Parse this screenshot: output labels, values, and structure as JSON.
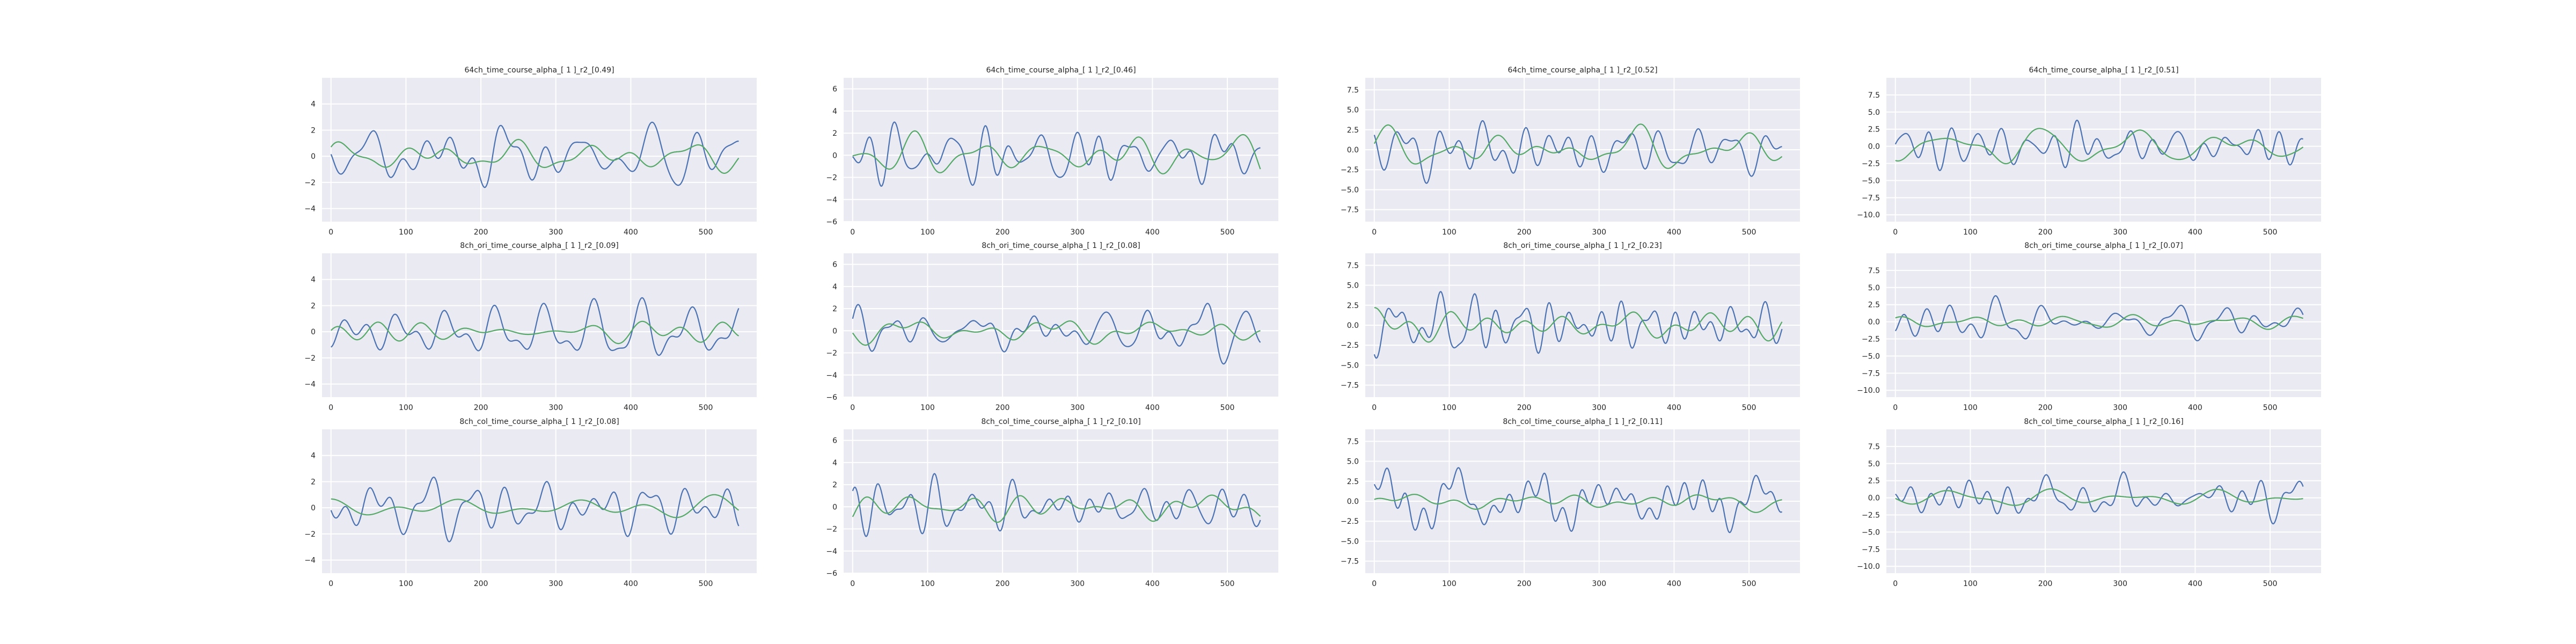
{
  "figure": {
    "rows": 3,
    "cols": 4,
    "series_colors": [
      "#4c72b0",
      "#55a868"
    ],
    "grid": true,
    "style": "light-gray background with white gridlines"
  },
  "chart_data": [
    {
      "type": "line",
      "title": "64ch_time_course_alpha_[ 1 ]_r2_[0.49]",
      "xlim": [
        -12,
        568
      ],
      "ylim": [
        -5,
        6
      ],
      "x_ticks": [
        0,
        100,
        200,
        300,
        400,
        500
      ],
      "y_ticks": [
        "4",
        "2",
        "0",
        "−2",
        "−4"
      ],
      "y_tick_values": [
        4,
        2,
        0,
        -2,
        -4
      ],
      "amp": [
        2.6,
        1.3
      ],
      "seed": 11
    },
    {
      "type": "line",
      "title": "64ch_time_course_alpha_[ 1 ]_r2_[0.46]",
      "xlim": [
        -12,
        568
      ],
      "ylim": [
        -6,
        7
      ],
      "x_ticks": [
        0,
        100,
        200,
        300,
        400,
        500
      ],
      "y_ticks": [
        "6",
        "4",
        "2",
        "0",
        "−2",
        "−4",
        "−6"
      ],
      "y_tick_values": [
        6,
        4,
        2,
        0,
        -2,
        -4,
        -6
      ],
      "amp": [
        3.0,
        2.2
      ],
      "seed": 23
    },
    {
      "type": "line",
      "title": "64ch_time_course_alpha_[ 1 ]_r2_[0.52]",
      "xlim": [
        -12,
        568
      ],
      "ylim": [
        -9,
        9
      ],
      "x_ticks": [
        0,
        100,
        200,
        300,
        400,
        500
      ],
      "y_ticks": [
        "7.5",
        "5.0",
        "2.5",
        "0.0",
        "−2.5",
        "−5.0",
        "−7.5"
      ],
      "y_tick_values": [
        7.5,
        5,
        2.5,
        0,
        -2.5,
        -5,
        -7.5
      ],
      "amp": [
        4.2,
        3.2
      ],
      "seed": 37
    },
    {
      "type": "line",
      "title": "64ch_time_course_alpha_[ 1 ]_r2_[0.51]",
      "xlim": [
        -12,
        568
      ],
      "ylim": [
        -11,
        10
      ],
      "x_ticks": [
        0,
        100,
        200,
        300,
        400,
        500
      ],
      "y_ticks": [
        "7.5",
        "5.0",
        "2.5",
        "0.0",
        "−2.5",
        "−5.0",
        "−7.5",
        "−10.0"
      ],
      "y_tick_values": [
        7.5,
        5,
        2.5,
        0,
        -2.5,
        -5,
        -7.5,
        -10
      ],
      "amp": [
        3.8,
        2.6
      ],
      "seed": 41
    },
    {
      "type": "line",
      "title": "8ch_ori_time_course_alpha_[ 1 ]_r2_[0.09]",
      "xlim": [
        -12,
        568
      ],
      "ylim": [
        -5,
        6
      ],
      "x_ticks": [
        0,
        100,
        200,
        300,
        400,
        500
      ],
      "y_ticks": [
        "4",
        "2",
        "0",
        "−2",
        "−4"
      ],
      "y_tick_values": [
        4,
        2,
        0,
        -2,
        -4
      ],
      "amp": [
        2.6,
        0.9
      ],
      "seed": 53
    },
    {
      "type": "line",
      "title": "8ch_ori_time_course_alpha_[ 1 ]_r2_[0.08]",
      "xlim": [
        -12,
        568
      ],
      "ylim": [
        -6,
        7
      ],
      "x_ticks": [
        0,
        100,
        200,
        300,
        400,
        500
      ],
      "y_ticks": [
        "6",
        "4",
        "2",
        "0",
        "−2",
        "−4",
        "−6"
      ],
      "y_tick_values": [
        6,
        4,
        2,
        0,
        -2,
        -4,
        -6
      ],
      "amp": [
        3.0,
        1.3
      ],
      "seed": 67
    },
    {
      "type": "line",
      "title": "8ch_ori_time_course_alpha_[ 1 ]_r2_[0.23]",
      "xlim": [
        -12,
        568
      ],
      "ylim": [
        -9,
        9
      ],
      "x_ticks": [
        0,
        100,
        200,
        300,
        400,
        500
      ],
      "y_ticks": [
        "7.5",
        "5.0",
        "2.5",
        "0.0",
        "−2.5",
        "−5.0",
        "−7.5"
      ],
      "y_tick_values": [
        7.5,
        5,
        2.5,
        0,
        -2.5,
        -5,
        -7.5
      ],
      "amp": [
        4.2,
        2.2
      ],
      "seed": 71
    },
    {
      "type": "line",
      "title": "8ch_ori_time_course_alpha_[ 1 ]_r2_[0.07]",
      "xlim": [
        -12,
        568
      ],
      "ylim": [
        -11,
        10
      ],
      "x_ticks": [
        0,
        100,
        200,
        300,
        400,
        500
      ],
      "y_ticks": [
        "7.5",
        "5.0",
        "2.5",
        "0.0",
        "−2.5",
        "−5.0",
        "−7.5",
        "−10.0"
      ],
      "y_tick_values": [
        7.5,
        5,
        2.5,
        0,
        -2.5,
        -5,
        -7.5,
        -10
      ],
      "amp": [
        3.8,
        1.1
      ],
      "seed": 83
    },
    {
      "type": "line",
      "title": "8ch_col_time_course_alpha_[ 1 ]_r2_[0.08]",
      "xlim": [
        -12,
        568
      ],
      "ylim": [
        -5,
        6
      ],
      "x_ticks": [
        0,
        100,
        200,
        300,
        400,
        500
      ],
      "y_ticks": [
        "4",
        "2",
        "0",
        "−2",
        "−4"
      ],
      "y_tick_values": [
        4,
        2,
        0,
        -2,
        -4
      ],
      "amp": [
        2.6,
        1.0
      ],
      "seed": 97
    },
    {
      "type": "line",
      "title": "8ch_col_time_course_alpha_[ 1 ]_r2_[0.10]",
      "xlim": [
        -12,
        568
      ],
      "ylim": [
        -6,
        7
      ],
      "x_ticks": [
        0,
        100,
        200,
        300,
        400,
        500
      ],
      "y_ticks": [
        "6",
        "4",
        "2",
        "0",
        "−2",
        "−4",
        "−6"
      ],
      "y_tick_values": [
        6,
        4,
        2,
        0,
        -2,
        -4,
        -6
      ],
      "amp": [
        3.0,
        1.4
      ],
      "seed": 101
    },
    {
      "type": "line",
      "title": "8ch_col_time_course_alpha_[ 1 ]_r2_[0.11]",
      "xlim": [
        -12,
        568
      ],
      "ylim": [
        -9,
        9
      ],
      "x_ticks": [
        0,
        100,
        200,
        300,
        400,
        500
      ],
      "y_ticks": [
        "7.5",
        "5.0",
        "2.5",
        "0.0",
        "−2.5",
        "−5.0",
        "−7.5"
      ],
      "y_tick_values": [
        7.5,
        5,
        2.5,
        0,
        -2.5,
        -5,
        -7.5
      ],
      "amp": [
        4.2,
        1.4
      ],
      "seed": 113
    },
    {
      "type": "line",
      "title": "8ch_col_time_course_alpha_[ 1 ]_r2_[0.16]",
      "xlim": [
        -12,
        568
      ],
      "ylim": [
        -11,
        10
      ],
      "x_ticks": [
        0,
        100,
        200,
        300,
        400,
        500
      ],
      "y_ticks": [
        "7.5",
        "5.0",
        "2.5",
        "0.0",
        "−2.5",
        "−5.0",
        "−7.5",
        "−10.0"
      ],
      "y_tick_values": [
        7.5,
        5,
        2.5,
        0,
        -2.5,
        -5,
        -7.5,
        -10
      ],
      "amp": [
        3.8,
        1.3
      ],
      "seed": 127
    }
  ]
}
